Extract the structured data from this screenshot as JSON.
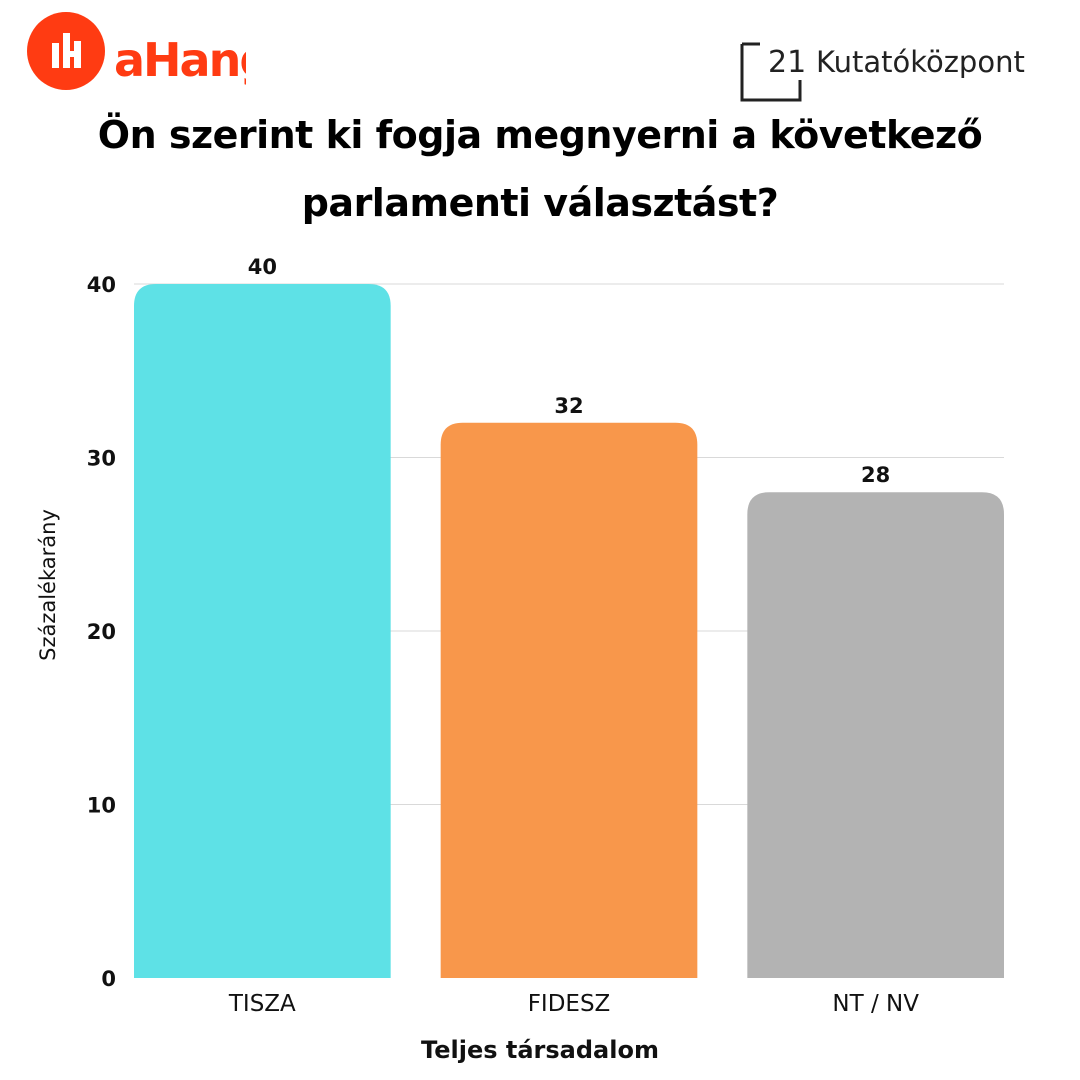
{
  "header": {
    "ahang_logo_text": "aHang",
    "kutato_logo_number": "21",
    "kutato_logo_text": "Kutatóközpont"
  },
  "title_lines": [
    "Ön szerint ki fogja megnyerni a következő",
    "parlamenti választást?"
  ],
  "colors": {
    "brand_red": "#ff3b12",
    "gridline": "#d9d9d9"
  },
  "chart_data": {
    "type": "bar",
    "title": "Ön szerint ki fogja megnyerni a következő parlamenti választást?",
    "categories": [
      "TISZA",
      "FIDESZ",
      "NT / NV"
    ],
    "values": [
      40,
      32,
      28
    ],
    "colors": [
      "#5ee1e6",
      "#f8974b",
      "#b3b3b3"
    ],
    "xlabel": "Teljes társadalom",
    "ylabel": "Százalékarány",
    "ylim": [
      0,
      40
    ],
    "yticks": [
      0,
      10,
      20,
      30,
      40
    ],
    "grid": true,
    "legend": "none"
  }
}
